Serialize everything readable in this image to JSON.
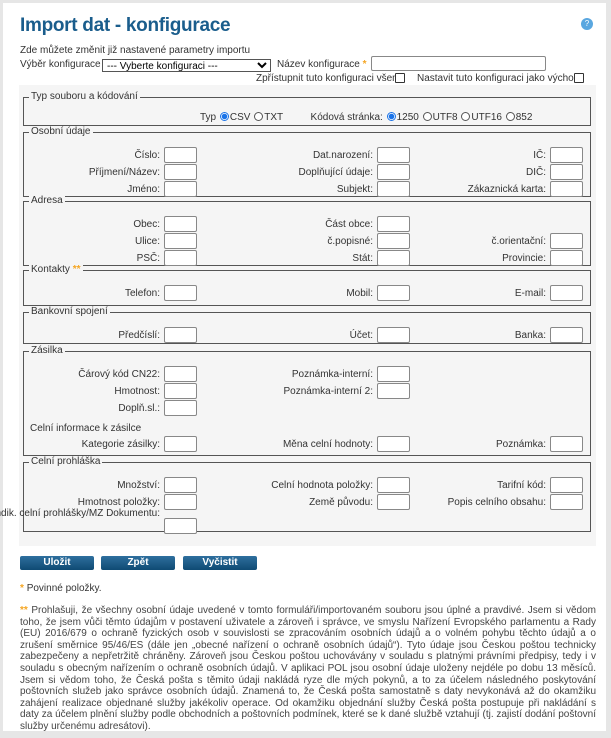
{
  "title": "Import dat - konfigurace",
  "help_icon": "question-icon",
  "intro": "Zde můžete změnit již nastavené parametry importu",
  "config": {
    "select_label": "Výběr konfigurace",
    "select_value": "--- Vyberte konfiguraci ---",
    "name_label": "Název konfigurace",
    "name_value": "",
    "required_mark": "*",
    "share_label": "Zpřístupnit tuto konfiguraci všem",
    "default_label": "Nastavit tuto konfiguraci jako výchozí"
  },
  "filetype": {
    "legend": "Typ souboru a kódování",
    "type_label": "Typ",
    "types": [
      "CSV",
      "TXT"
    ],
    "type_selected": "CSV",
    "code_label": "Kódová stránka:",
    "codes": [
      "1250",
      "UTF8",
      "UTF16",
      "852"
    ],
    "code_selected": "1250"
  },
  "sections": [
    {
      "legend": "Osobní údaje",
      "rows": [
        [
          "Číslo:",
          "Dat.narození:",
          "IČ:"
        ],
        [
          "Příjmení/Název:",
          "Doplňující údaje:",
          "DIČ:"
        ],
        [
          "Jméno:",
          "Subjekt:",
          "Zákaznická karta:"
        ]
      ]
    },
    {
      "legend": "Adresa",
      "rows": [
        [
          "Obec:",
          "Část obce:",
          ""
        ],
        [
          "Ulice:",
          "č.popisné:",
          "č.orientační:"
        ],
        [
          "PSČ:",
          "Stát:",
          "Provincie:"
        ]
      ]
    },
    {
      "legend": "Kontakty",
      "legend_mark": "**",
      "rows": [
        [
          "Telefon:",
          "Mobil:",
          "E-mail:"
        ]
      ]
    },
    {
      "legend": "Bankovní spojení",
      "rows": [
        [
          "Předčíslí:",
          "Účet:",
          "Banka:"
        ]
      ]
    },
    {
      "legend": "Zásilka",
      "rows": [
        [
          "Čárový kód CN22:",
          "Poznámka-interní:",
          ""
        ],
        [
          "Hmotnost:",
          "Poznámka-interní 2:",
          ""
        ],
        [
          "Doplň.sl.:",
          "",
          ""
        ]
      ],
      "subheading": "Celní informace k zásilce",
      "rows2": [
        [
          "Kategorie zásilky:",
          "Měna celní hodnoty:",
          "Poznámka:"
        ]
      ]
    },
    {
      "legend": "Celní prohláška",
      "rows": [
        [
          "Množství:",
          "Celní hodnota položky:",
          "Tarifní kód:"
        ],
        [
          "Hmotnost položky:",
          "Země původu:",
          "Popis celního obsahu:"
        ]
      ],
      "extra_label": "Indik. celní prohlášky/MZ Dokumentu:"
    }
  ],
  "buttons": {
    "save": "Uložit",
    "back": "Zpět",
    "clear": "Vyčistit"
  },
  "footnote": {
    "mark": "*",
    "text": "Povinné položky."
  },
  "legal": {
    "mark": "**",
    "text": "Prohlašuji, že všechny osobní údaje uvedené v tomto formuláři/importovaném souboru jsou úplné a pravdivé. Jsem si vědom toho, že jsem vůči těmto údajům v postavení uživatele a zároveň i správce, ve smyslu Nařízení Evropského parlamentu a Rady (EU) 2016/679 o ochraně fyzických osob v souvislosti se zpracováním osobních údajů a o volném pohybu těchto údajů a o zrušení směrnice 95/46/ES (dále jen „obecné nařízení o ochraně osobních údajů“). Tyto údaje jsou Českou poštou technicky zabezpečeny a nepřetržitě chráněny. Zároveň jsou Českou poštou uchovávány v souladu s platnými právními předpisy, tedy i v souladu s obecným nařízením o ochraně osobních údajů. V aplikaci POL jsou osobní údaje uloženy nejdéle po dobu 13 měsíců. Jsem si vědom toho, že Česká pošta s těmito údaji nakládá ryze dle mých pokynů, a to za účelem následného poskytování poštovních služeb jako správce osobních údajů. Znamená to, že Česká pošta samostatně s daty nevykonává až do okamžiku zahájení realizace objednané služby jakékoliv operace. Od okamžiku objednání služby Česká pošta postupuje při nakládání s daty za účelem plnění služby podle obchodních a poštovních podmínek, které se k dané službě vztahují (tj. zajistí dodání poštovní služby určenému adresátovi)."
  }
}
